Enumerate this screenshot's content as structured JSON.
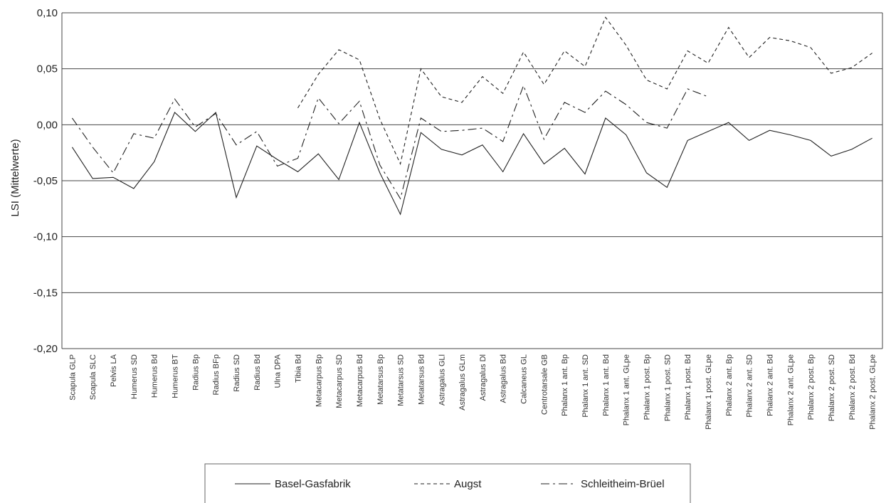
{
  "chart_data": {
    "type": "line",
    "ylabel": "LSI (Mittelwerte)",
    "ylim": [
      -0.2,
      0.1
    ],
    "yticks": [
      0.1,
      0.05,
      0.0,
      -0.05,
      -0.1,
      -0.15,
      -0.2
    ],
    "ytick_labels": [
      "0,10",
      "0,05",
      "0,00",
      "-0,05",
      "-0,10",
      "-0,15",
      "-0,20"
    ],
    "grid": true,
    "legend_position": "bottom",
    "categories": [
      "Scapula GLP",
      "Scapula SLC",
      "Pelvis LA",
      "Humerus SD",
      "Humerus Bd",
      "Humerus BT",
      "Radius Bp",
      "Radius BFp",
      "Radius SD",
      "Radius Bd",
      "Ulna DPA",
      "Tibia Bd",
      "Metacarpus Bp",
      "Metacarpus SD",
      "Metacarpus Bd",
      "Metatarsus Bp",
      "Metatarsus SD",
      "Metatarsus Bd",
      "Astragalus GLl",
      "Astragalus GLm",
      "Astragalus Dl",
      "Astragalus Bd",
      "Calcaneus GL",
      "Centrotarsale GB",
      "Phalanx 1 ant. Bp",
      "Phalanx 1 ant. SD",
      "Phalanx 1 ant. Bd",
      "Phalanx 1 ant. GLpe",
      "Phalanx 1 post. Bp",
      "Phalanx 1 post. SD",
      "Phalanx 1 post. Bd",
      "Phalanx 1 post. GLpe",
      "Phalanx 2 ant. Bp",
      "Phalanx 2 ant. SD",
      "Phalanx 2 ant. Bd",
      "Phalanx 2 ant. GLpe",
      "Phalanx 2 post. Bp",
      "Phalanx 2 post. SD",
      "Phalanx 2 post. Bd",
      "Phalanx 2 post. GLpe"
    ],
    "series": [
      {
        "name": "Basel-Gasfabrik",
        "style": "solid",
        "values": [
          -0.02,
          -0.048,
          -0.047,
          -0.057,
          -0.033,
          0.011,
          -0.006,
          0.011,
          -0.065,
          -0.019,
          -0.031,
          -0.042,
          -0.026,
          -0.049,
          0.002,
          -0.043,
          -0.08,
          -0.007,
          -0.022,
          -0.027,
          -0.018,
          -0.042,
          -0.008,
          -0.035,
          -0.021,
          -0.044,
          0.006,
          -0.009,
          -0.043,
          -0.056,
          -0.014,
          -0.006,
          0.002,
          -0.014,
          -0.005,
          -0.009,
          -0.014,
          -0.028,
          -0.022,
          -0.012
        ]
      },
      {
        "name": "Augst",
        "style": "dashed",
        "values": [
          null,
          null,
          null,
          null,
          null,
          null,
          null,
          null,
          null,
          null,
          null,
          0.015,
          0.045,
          0.067,
          0.058,
          0.005,
          -0.035,
          0.05,
          0.025,
          0.02,
          0.043,
          0.028,
          0.065,
          0.036,
          0.066,
          0.052,
          0.096,
          0.071,
          0.04,
          0.032,
          0.066,
          0.055,
          0.087,
          0.06,
          0.078,
          0.075,
          0.069,
          0.046,
          0.051,
          0.064
        ]
      },
      {
        "name": "Schleitheim-Brüel",
        "style": "dashdot",
        "values": [
          0.006,
          -0.02,
          -0.043,
          -0.008,
          -0.012,
          0.023,
          -0.002,
          0.01,
          -0.018,
          -0.006,
          -0.037,
          -0.03,
          0.024,
          0.001,
          0.021,
          -0.036,
          -0.066,
          0.006,
          -0.006,
          -0.005,
          -0.003,
          -0.015,
          0.035,
          -0.013,
          0.02,
          0.011,
          0.03,
          0.018,
          0.002,
          -0.003,
          0.032,
          0.025,
          null,
          null,
          null,
          null,
          null,
          null,
          null,
          null
        ]
      }
    ]
  }
}
